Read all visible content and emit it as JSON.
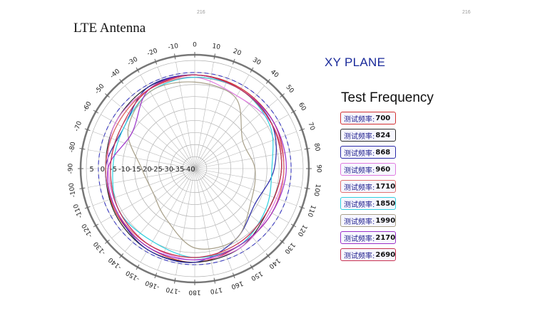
{
  "title": "LTE Antenna",
  "plane_label": "XY PLANE",
  "legend_title": "Test Frequency",
  "legend_prefix": "测试频率:",
  "corner_marks": [
    "216",
    "216"
  ],
  "chart_data": {
    "type": "polar-line",
    "title": "LTE Antenna",
    "subtitle": "XY PLANE",
    "angle_ticks": [
      0,
      10,
      20,
      30,
      40,
      50,
      60,
      70,
      80,
      90,
      100,
      110,
      120,
      130,
      140,
      150,
      160,
      170,
      180,
      -170,
      -160,
      -150,
      -140,
      -130,
      -120,
      -110,
      -100,
      -90,
      -80,
      -70,
      -60,
      -50,
      -40,
      -30,
      -20,
      -10
    ],
    "radial_ticks": [
      "5",
      "0",
      "-5",
      "-10",
      "-15",
      "-20",
      "-25",
      "-30",
      "-35",
      "-40"
    ],
    "radial_range_db": [
      -40,
      5
    ],
    "angles_deg": [
      0,
      30,
      60,
      90,
      120,
      150,
      180,
      210,
      240,
      270,
      300,
      330
    ],
    "series": [
      {
        "name": "700",
        "color": "#d23030",
        "values": [
          -1,
          -1.5,
          -2,
          -3,
          -3,
          -3,
          -1,
          -2,
          -2.5,
          -3,
          -3,
          -2
        ]
      },
      {
        "name": "824",
        "color": "#2a2a2a",
        "values": [
          -1,
          -2,
          -3,
          -4,
          -5,
          -2,
          -1,
          -1,
          -2,
          -3,
          -2,
          -1
        ]
      },
      {
        "name": "868",
        "color": "#2a2aa8",
        "values": [
          -1,
          -2,
          -3,
          -7,
          -11,
          -6,
          -1,
          -1,
          -3,
          -3,
          -6,
          -1
        ]
      },
      {
        "name": "960",
        "color": "#e07ae0",
        "values": [
          -2,
          -5,
          -3,
          -3,
          -4,
          -2,
          -2,
          -3,
          -4,
          -4,
          -2,
          -2
        ]
      },
      {
        "name": "1710",
        "color": "#e07070",
        "values": [
          -2,
          -2,
          -3,
          -3,
          -3,
          -3,
          -3,
          -3,
          -3,
          -3,
          -3,
          -2
        ]
      },
      {
        "name": "1850",
        "color": "#30d0e0",
        "values": [
          -2,
          -2,
          -4,
          -8,
          -6,
          -3,
          -3,
          -5,
          -4,
          -6,
          -6,
          -3
        ]
      },
      {
        "name": "1990",
        "color": "#a8a08a",
        "values": [
          -4,
          -6,
          -17,
          -15,
          -13,
          -6,
          -7,
          -16,
          -20,
          -18,
          -8,
          -3
        ]
      },
      {
        "name": "2170",
        "color": "#9a30c8",
        "values": [
          -1,
          -2,
          -2,
          -2,
          -3,
          -3,
          -2,
          -2,
          -3,
          -4,
          -10,
          -2
        ]
      },
      {
        "name": "2690",
        "color": "#c83050",
        "values": [
          -1,
          -2,
          -3,
          -4,
          -5,
          -4,
          -3,
          -3,
          -4,
          -5,
          -5,
          -2
        ]
      }
    ]
  }
}
